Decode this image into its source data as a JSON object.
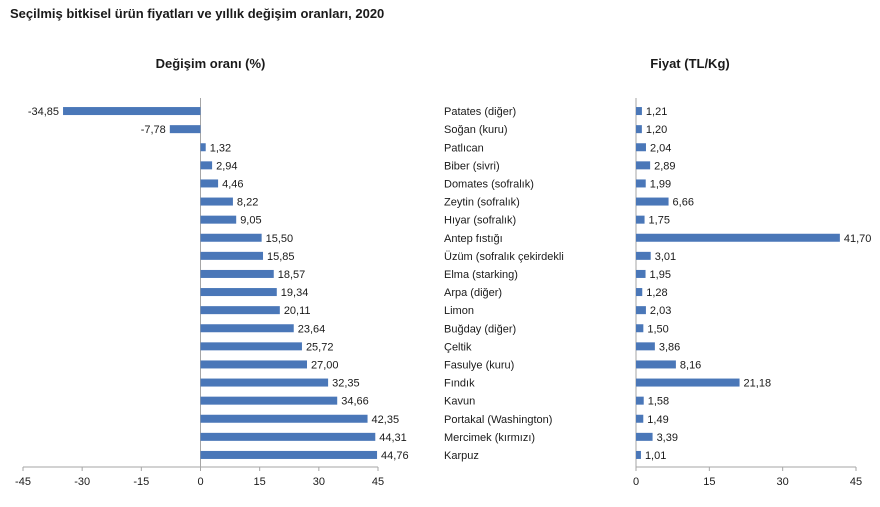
{
  "title": "Seçilmiş bitkisel ürün fiyatları ve yıllık değişim oranları, 2020",
  "chart_data": [
    {
      "type": "bar",
      "orientation": "horizontal",
      "title": "Değişim oranı (%)",
      "xlim": [
        -45,
        45
      ],
      "xticks": [
        "-45",
        "-30",
        "-15",
        "0",
        "15",
        "30",
        "45"
      ],
      "xtick_values": [
        -45,
        -30,
        -15,
        0,
        15,
        30,
        45
      ],
      "color": "#4a77b8",
      "values": [
        -34.85,
        -7.78,
        1.32,
        2.94,
        4.46,
        8.22,
        9.05,
        15.5,
        15.85,
        18.57,
        19.34,
        20.11,
        23.64,
        25.72,
        27.0,
        32.35,
        34.66,
        42.35,
        44.31,
        44.76
      ],
      "value_labels": [
        "-34,85",
        "-7,78",
        "1,32",
        "2,94",
        "4,46",
        "8,22",
        "9,05",
        "15,50",
        "15,85",
        "18,57",
        "19,34",
        "20,11",
        "23,64",
        "25,72",
        "27,00",
        "32,35",
        "34,66",
        "42,35",
        "44,31",
        "44,76"
      ]
    },
    {
      "type": "bar",
      "orientation": "horizontal",
      "title": "Fiyat (TL/Kg)",
      "xlim": [
        0,
        45
      ],
      "xticks": [
        "0",
        "15",
        "30",
        "45"
      ],
      "xtick_values": [
        0,
        15,
        30,
        45
      ],
      "color": "#4a77b8",
      "categories": [
        "Patates (diğer)",
        "Soğan (kuru)",
        "Patlıcan",
        "Biber (sivri)",
        "Domates (sofralık)",
        "Zeytin (sofralık)",
        "Hıyar (sofralık)",
        "Antep fıstığı",
        "Üzüm (sofralık çekirdekli",
        "Elma (starking)",
        "Arpa (diğer)",
        "Limon",
        "Buğday (diğer)",
        "Çeltik",
        "Fasulye (kuru)",
        "Fındık",
        "Kavun",
        "Portakal (Washington)",
        "Mercimek (kırmızı)",
        "Karpuz"
      ],
      "values": [
        1.21,
        1.2,
        2.04,
        2.89,
        1.99,
        6.66,
        1.75,
        41.7,
        3.01,
        1.95,
        1.28,
        2.03,
        1.5,
        3.86,
        8.16,
        21.18,
        1.58,
        1.49,
        3.39,
        1.01
      ],
      "value_labels": [
        "1,21",
        "1,20",
        "2,04",
        "2,89",
        "1,99",
        "6,66",
        "1,75",
        "41,70",
        "3,01",
        "1,95",
        "1,28",
        "2,03",
        "1,50",
        "3,86",
        "8,16",
        "21,18",
        "1,58",
        "1,49",
        "3,39",
        "1,01"
      ]
    }
  ]
}
